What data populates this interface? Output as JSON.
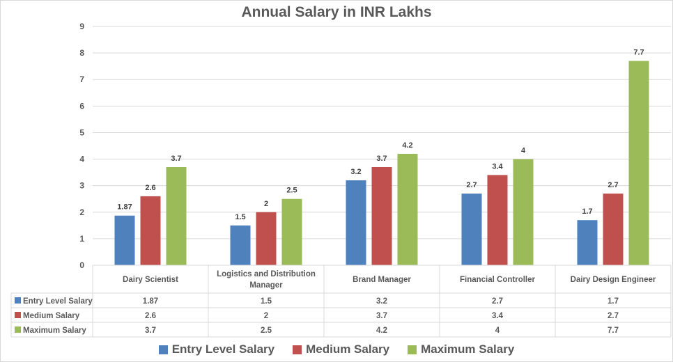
{
  "chart_data": {
    "type": "bar",
    "title": "Annual Salary in INR Lakhs",
    "xlabel": "",
    "ylabel": "",
    "ylim": [
      0,
      9
    ],
    "yticks": [
      0,
      1,
      2,
      3,
      4,
      5,
      6,
      7,
      8,
      9
    ],
    "grid": true,
    "legend_position": "bottom",
    "data_table": true,
    "categories": [
      "Dairy Scientist",
      "Logistics and Distribution Manager",
      "Brand Manager",
      "Financial Controller",
      "Dairy Design Engineer"
    ],
    "category_label_lines": [
      [
        "Dairy Scientist"
      ],
      [
        "Logistics and Distribution",
        "Manager"
      ],
      [
        "Brand Manager"
      ],
      [
        "Financial Controller"
      ],
      [
        "Dairy Design Engineer"
      ]
    ],
    "series": [
      {
        "name": "Entry Level Salary",
        "color": "#4f81bd",
        "values": [
          1.87,
          1.5,
          3.2,
          2.7,
          1.7
        ],
        "labels": [
          "1.87",
          "1.5",
          "3.2",
          "2.7",
          "1.7"
        ]
      },
      {
        "name": "Medium Salary",
        "color": "#c0504d",
        "values": [
          2.6,
          2,
          3.7,
          3.4,
          2.7
        ],
        "labels": [
          "2.6",
          "2",
          "3.7",
          "3.4",
          "2.7"
        ]
      },
      {
        "name": "Maximum Salary",
        "color": "#9bbb59",
        "values": [
          3.7,
          2.5,
          4.2,
          4,
          7.7
        ],
        "labels": [
          "3.7",
          "2.5",
          "4.2",
          "4",
          "7.7"
        ]
      }
    ]
  }
}
